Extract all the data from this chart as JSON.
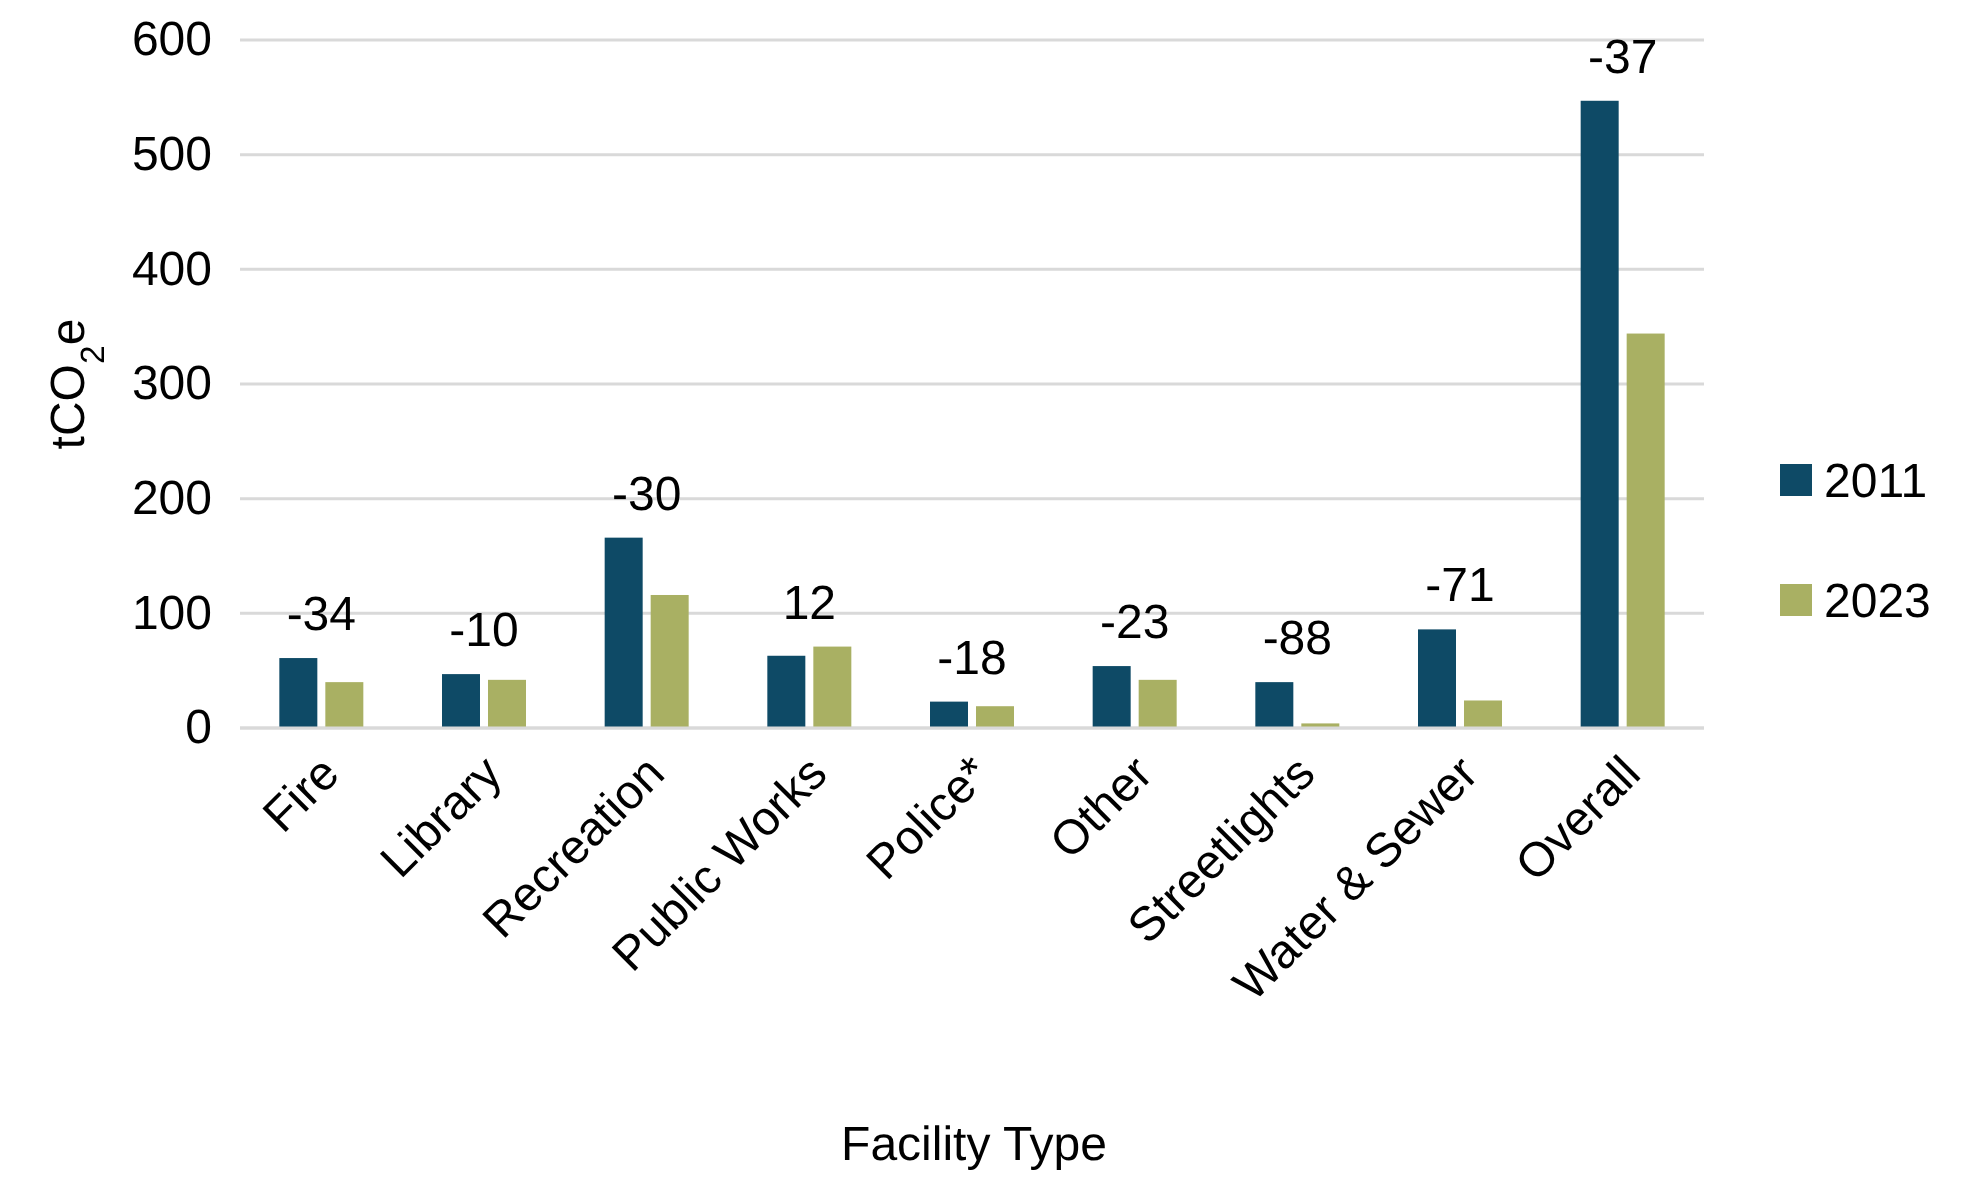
{
  "chart_data": {
    "type": "bar",
    "xlabel": "Facility Type",
    "ylabel": "tCO$_{2}$e",
    "categories": [
      "Fire",
      "Library",
      "Recreation",
      "Public Works",
      "Police*",
      "Other",
      "Streetlights",
      "Water & Sewer",
      "Overall"
    ],
    "series": [
      {
        "name": "2011",
        "color": "#0e4a66",
        "values": [
          61,
          47,
          166,
          63,
          23,
          54,
          40,
          86,
          547
        ]
      },
      {
        "name": "2023",
        "color": "#a9b063",
        "values": [
          40,
          42,
          116,
          71,
          19,
          42,
          4,
          24,
          344
        ]
      }
    ],
    "ylim": [
      0,
      600
    ],
    "yticks": [
      0,
      100,
      200,
      300,
      400,
      500,
      600
    ],
    "grid": "y",
    "legend": "right",
    "annotations": [
      "-34",
      "-10",
      "-30",
      "12",
      "-18",
      "-23",
      "-88",
      "-71",
      "-37"
    ]
  }
}
